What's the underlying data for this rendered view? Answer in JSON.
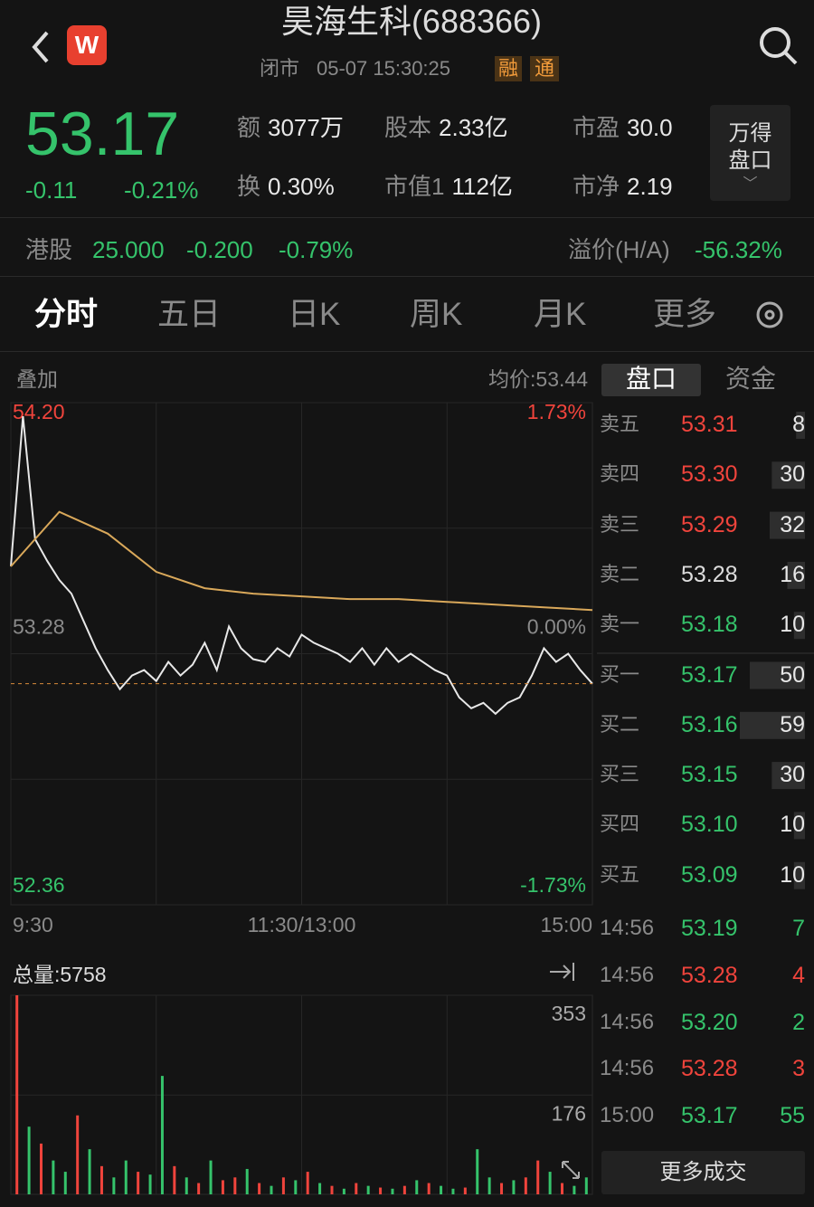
{
  "header": {
    "title": "昊海生科(688366)",
    "status": "闭市",
    "datetime": "05-07 15:30:25",
    "badges": [
      "融",
      "通"
    ]
  },
  "quote": {
    "price": "53.17",
    "change": "-0.11",
    "change_pct": "-0.21%",
    "stats": [
      {
        "label": "额",
        "value": "3077万"
      },
      {
        "label": "股本",
        "value": "2.33亿"
      },
      {
        "label": "市盈",
        "value": "30.0"
      },
      {
        "label": "换",
        "value": "0.30%"
      },
      {
        "label": "市值1",
        "value": "112亿"
      },
      {
        "label": "市净",
        "value": "2.19"
      }
    ],
    "side_button": [
      "万得",
      "盘口"
    ]
  },
  "hk": {
    "label": "港股",
    "price": "25.000",
    "change": "-0.200",
    "change_pct": "-0.79%",
    "premium_label": "溢价(H/A)",
    "premium": "-56.32%"
  },
  "tabs": [
    "分时",
    "五日",
    "日K",
    "周K",
    "月K",
    "更多"
  ],
  "overlay": "叠加",
  "avg_price": "均价:53.44",
  "book_tabs": [
    "盘口",
    "资金"
  ],
  "asks": [
    {
      "label": "卖五",
      "price": "53.31",
      "volume": "8",
      "color": "#f0443c"
    },
    {
      "label": "卖四",
      "price": "53.30",
      "volume": "30",
      "color": "#f0443c"
    },
    {
      "label": "卖三",
      "price": "53.29",
      "volume": "32",
      "color": "#f0443c"
    },
    {
      "label": "卖二",
      "price": "53.28",
      "volume": "16",
      "color": "#dddddd"
    },
    {
      "label": "卖一",
      "price": "53.18",
      "volume": "10",
      "color": "#35c36b"
    }
  ],
  "bids": [
    {
      "label": "买一",
      "price": "53.17",
      "volume": "50",
      "color": "#35c36b"
    },
    {
      "label": "买二",
      "price": "53.16",
      "volume": "59",
      "color": "#35c36b"
    },
    {
      "label": "买三",
      "price": "53.15",
      "volume": "30",
      "color": "#35c36b"
    },
    {
      "label": "买四",
      "price": "53.10",
      "volume": "10",
      "color": "#35c36b"
    },
    {
      "label": "买五",
      "price": "53.09",
      "volume": "10",
      "color": "#35c36b"
    }
  ],
  "trades": [
    {
      "time": "14:56",
      "price": "53.19",
      "volume": "7",
      "color": "#35c36b"
    },
    {
      "time": "14:56",
      "price": "53.28",
      "volume": "4",
      "color": "#f0443c"
    },
    {
      "time": "14:56",
      "price": "53.20",
      "volume": "2",
      "color": "#35c36b"
    },
    {
      "time": "14:56",
      "price": "53.28",
      "volume": "3",
      "color": "#f0443c"
    },
    {
      "time": "15:00",
      "price": "53.17",
      "volume": "55",
      "color": "#35c36b"
    }
  ],
  "more_trades": "更多成交",
  "chart_data": [
    {
      "type": "line",
      "ylim": [
        52.36,
        54.2
      ],
      "yticks": [
        {
          "value": 54.2,
          "label": "54.20"
        },
        53.28,
        52.36
      ],
      "y2lim": [
        -1.73,
        1.73
      ],
      "y2ticks": [
        {
          "value": 1.73,
          "label": "1.73%"
        },
        {
          "value": 0,
          "label": "0.00%"
        },
        {
          "value": -1.73,
          "label": "-1.73%"
        }
      ],
      "xlim": [
        0,
        240
      ],
      "xticks": [
        {
          "value": 0,
          "label": "9:30"
        },
        {
          "value": 120,
          "label": "11:30/13:00"
        },
        {
          "value": 240,
          "label": "15:00"
        }
      ],
      "series": [
        {
          "name": "price",
          "color": "#e8e8e8",
          "x": [
            0,
            5,
            10,
            15,
            20,
            25,
            30,
            35,
            40,
            45,
            50,
            55,
            60,
            65,
            70,
            75,
            80,
            85,
            90,
            95,
            100,
            105,
            110,
            115,
            120,
            125,
            130,
            135,
            140,
            145,
            150,
            155,
            160,
            165,
            170,
            175,
            180,
            185,
            190,
            195,
            200,
            205,
            210,
            215,
            220,
            225,
            230,
            235,
            240
          ],
          "values": [
            53.6,
            54.15,
            53.7,
            53.62,
            53.55,
            53.5,
            53.4,
            53.3,
            53.22,
            53.15,
            53.2,
            53.22,
            53.18,
            53.25,
            53.2,
            53.24,
            53.32,
            53.22,
            53.38,
            53.3,
            53.26,
            53.25,
            53.3,
            53.27,
            53.35,
            53.32,
            53.3,
            53.28,
            53.25,
            53.3,
            53.24,
            53.3,
            53.25,
            53.28,
            53.25,
            53.22,
            53.2,
            53.12,
            53.08,
            53.1,
            53.06,
            53.1,
            53.12,
            53.2,
            53.3,
            53.25,
            53.28,
            53.22,
            53.17
          ]
        },
        {
          "name": "avg",
          "color": "#d9a85a",
          "x": [
            0,
            20,
            40,
            60,
            80,
            100,
            120,
            140,
            160,
            180,
            200,
            220,
            240
          ],
          "values": [
            53.6,
            53.8,
            53.72,
            53.58,
            53.52,
            53.5,
            53.49,
            53.48,
            53.48,
            53.47,
            53.46,
            53.45,
            53.44
          ]
        }
      ]
    },
    {
      "type": "bar",
      "title": "总量:5758",
      "ylim": [
        0,
        353
      ],
      "yticks": [
        176,
        353
      ],
      "values": [
        353,
        120,
        90,
        60,
        40,
        140,
        80,
        50,
        30,
        60,
        40,
        35,
        210,
        50,
        30,
        20,
        60,
        25,
        30,
        45,
        20,
        15,
        30,
        25,
        40,
        20,
        15,
        10,
        20,
        15,
        12,
        10,
        15,
        25,
        20,
        15,
        10,
        12,
        80,
        30,
        20,
        25,
        30,
        60,
        40,
        20,
        15,
        30
      ],
      "colors": [
        "#f0443c",
        "#35c36b",
        "#f0443c",
        "#35c36b",
        "#35c36b",
        "#f0443c",
        "#35c36b",
        "#f0443c",
        "#35c36b",
        "#35c36b",
        "#f0443c",
        "#35c36b",
        "#35c36b",
        "#f0443c",
        "#35c36b",
        "#f0443c",
        "#35c36b",
        "#f0443c",
        "#f0443c",
        "#35c36b",
        "#f0443c",
        "#35c36b",
        "#f0443c",
        "#35c36b",
        "#f0443c",
        "#35c36b",
        "#f0443c",
        "#35c36b",
        "#f0443c",
        "#35c36b",
        "#f0443c",
        "#35c36b",
        "#f0443c",
        "#35c36b",
        "#f0443c",
        "#35c36b",
        "#35c36b",
        "#f0443c",
        "#35c36b",
        "#35c36b",
        "#f0443c",
        "#35c36b",
        "#f0443c",
        "#f0443c",
        "#35c36b",
        "#f0443c",
        "#35c36b",
        "#35c36b"
      ]
    }
  ]
}
